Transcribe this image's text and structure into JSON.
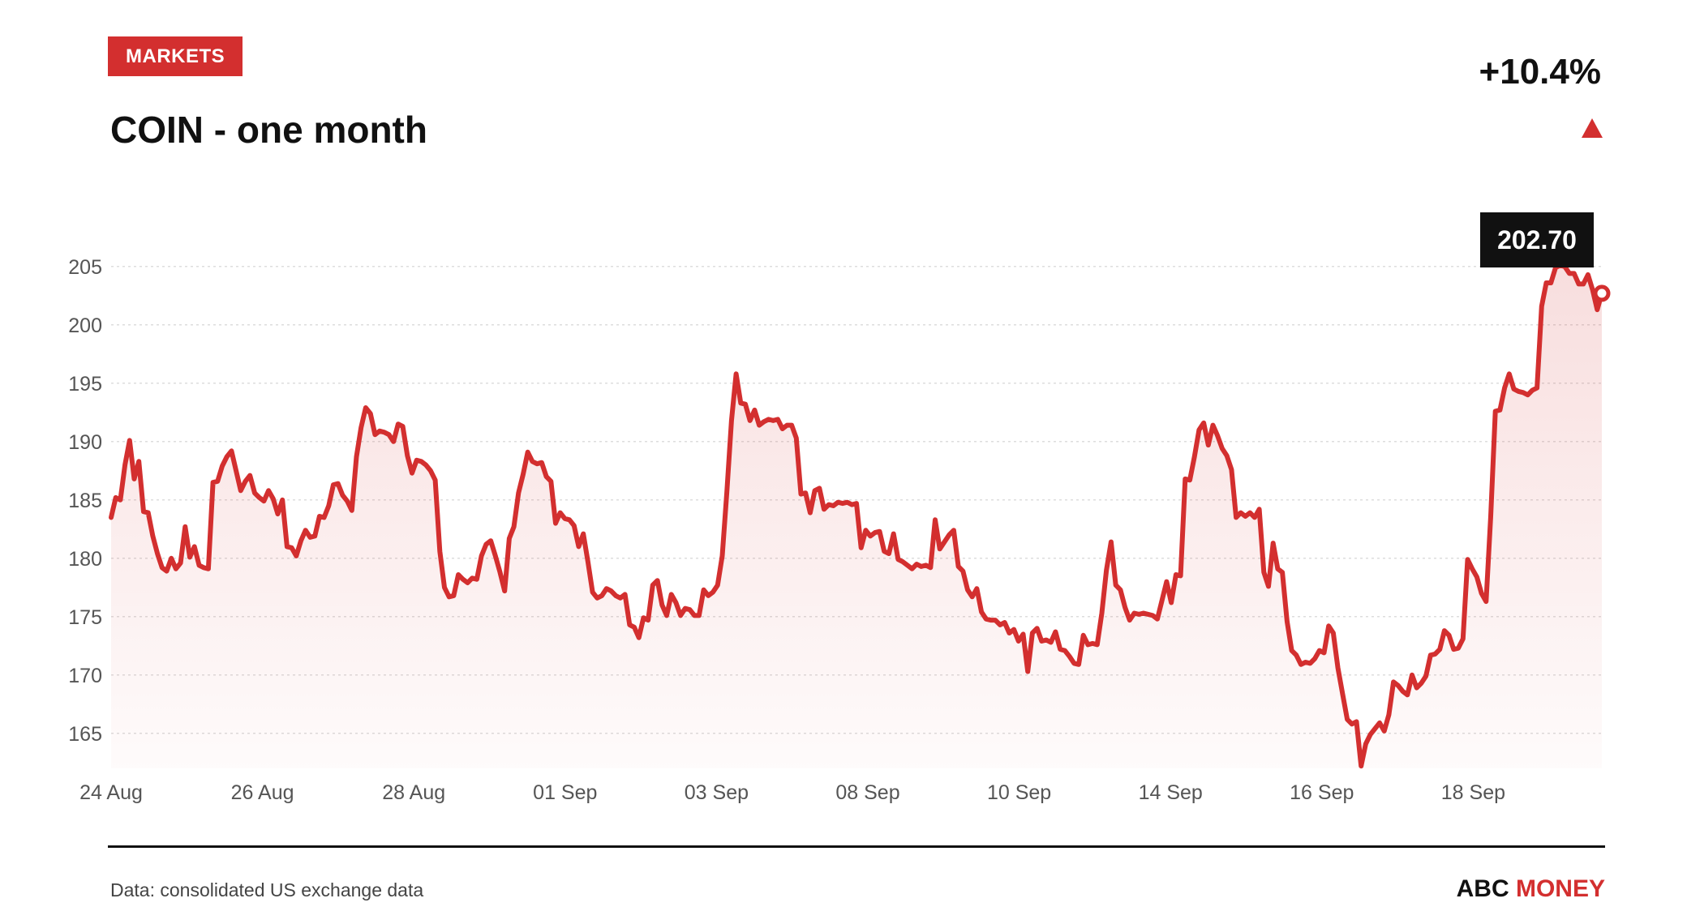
{
  "header": {
    "badge": "MARKETS",
    "title": "COIN - one month",
    "change": "+10.4%"
  },
  "footer": {
    "source": "Data: consolidated US exchange data",
    "brand_part1": "ABC",
    "brand_part2": "MONEY"
  },
  "colors": {
    "accent": "#d32f2f",
    "text": "#111111",
    "grid": "#dddddd",
    "tick_text": "#555555"
  },
  "icons": {
    "change_direction": "triangle-up-icon"
  },
  "chart_data": {
    "type": "area",
    "ylim": [
      162,
      207
    ],
    "yticks": [
      165,
      170,
      175,
      180,
      185,
      190,
      195,
      200,
      205
    ],
    "grid": true,
    "grid_style": "dotted-horizontal",
    "x_tick_labels": [
      "24 Aug",
      "26 Aug",
      "28 Aug",
      "01 Sep",
      "03 Sep",
      "08 Sep",
      "10 Sep",
      "14 Sep",
      "16 Sep",
      "18 Sep"
    ],
    "last_value_label": "202.70",
    "series": [
      {
        "values": [
          183.5,
          185.2,
          185.0,
          188.0,
          190.1,
          186.8,
          188.3,
          184.0,
          183.9,
          181.9,
          180.4,
          179.2,
          178.9,
          180.0,
          179.1,
          179.6,
          182.7,
          180.1,
          181.0,
          179.4,
          179.2,
          179.1,
          186.5,
          186.6,
          187.9,
          188.7,
          189.2,
          187.5,
          185.8,
          186.6,
          187.1,
          185.6,
          185.2,
          184.9,
          185.8,
          185.1,
          183.8,
          185.0,
          181.0,
          180.9,
          180.2,
          181.5,
          182.4,
          181.8,
          181.9,
          183.6,
          183.5,
          184.5,
          186.3,
          186.4,
          185.4,
          184.9,
          184.1,
          188.7,
          191.2,
          192.9,
          192.4,
          190.6,
          190.9,
          190.8,
          190.6,
          190.0,
          191.5,
          191.3,
          188.8,
          187.3,
          188.4,
          188.3,
          188.0,
          187.5,
          186.7,
          180.6,
          177.5,
          176.7,
          176.8,
          178.6,
          178.2,
          177.9,
          178.3,
          178.2,
          180.2,
          181.2,
          181.5,
          180.2,
          178.8,
          177.2,
          181.7,
          182.7,
          185.6,
          187.2,
          189.1,
          188.3,
          188.1,
          188.2,
          187.0,
          186.6,
          183.0,
          183.9,
          183.4,
          183.3,
          182.8,
          181.0,
          182.1,
          179.7,
          177.1,
          176.6,
          176.8,
          177.4,
          177.2,
          176.8,
          176.6,
          176.9,
          174.3,
          174.1,
          173.2,
          174.9,
          174.7,
          177.7,
          178.1,
          176.0,
          175.1,
          176.9,
          176.2,
          175.1,
          175.7,
          175.6,
          175.1,
          175.1,
          177.3,
          176.8,
          177.1,
          177.7,
          180.2,
          185.7,
          191.8,
          195.8,
          193.3,
          193.2,
          191.8,
          192.7,
          191.4,
          191.7,
          191.9,
          191.8,
          191.9,
          191.1,
          191.4,
          191.4,
          190.3,
          185.5,
          185.6,
          183.9,
          185.8,
          186.0,
          184.2,
          184.6,
          184.5,
          184.8,
          184.7,
          184.8,
          184.6,
          184.7,
          180.9,
          182.4,
          181.9,
          182.2,
          182.3,
          180.6,
          180.4,
          182.1,
          179.9,
          179.7,
          179.4,
          179.1,
          179.5,
          179.3,
          179.4,
          179.2,
          183.3,
          180.8,
          181.4,
          182.0,
          182.4,
          179.3,
          178.9,
          177.3,
          176.7,
          177.4,
          175.4,
          174.8,
          174.7,
          174.7,
          174.3,
          174.5,
          173.6,
          173.9,
          172.9,
          173.5,
          170.3,
          173.6,
          174.0,
          172.9,
          173.0,
          172.8,
          173.7,
          172.2,
          172.1,
          171.6,
          171.0,
          170.9,
          173.4,
          172.6,
          172.7,
          172.6,
          175.3,
          179.0,
          181.4,
          177.7,
          177.3,
          175.8,
          174.7,
          175.3,
          175.2,
          175.3,
          175.2,
          175.1,
          174.8,
          176.4,
          178.0,
          176.2,
          178.6,
          178.5,
          186.8,
          186.7,
          188.7,
          191.0,
          191.6,
          189.7,
          191.4,
          190.5,
          189.4,
          188.8,
          187.6,
          183.5,
          183.9,
          183.6,
          183.9,
          183.5,
          184.2,
          178.8,
          177.6,
          181.3,
          179.1,
          178.8,
          174.6,
          172.1,
          171.7,
          170.9,
          171.1,
          171.0,
          171.4,
          172.1,
          171.9,
          174.2,
          173.6,
          170.6,
          168.4,
          166.2,
          165.8,
          166.0,
          162.2,
          164.1,
          164.9,
          165.4,
          165.9,
          165.2,
          166.6,
          169.4,
          169.1,
          168.6,
          168.3,
          170.0,
          168.9,
          169.3,
          169.9,
          171.7,
          171.8,
          172.2,
          173.8,
          173.4,
          172.2,
          172.3,
          173.1,
          179.9,
          179.1,
          178.4,
          177.0,
          176.3,
          183.6,
          192.6,
          192.7,
          194.6,
          195.8,
          194.5,
          194.3,
          194.2,
          194.0,
          194.4,
          194.6,
          201.6,
          203.6,
          203.6,
          204.9,
          205.1,
          205.0,
          204.4,
          204.4,
          203.5,
          203.5,
          204.3,
          203.0,
          201.3,
          202.7
        ]
      }
    ]
  }
}
